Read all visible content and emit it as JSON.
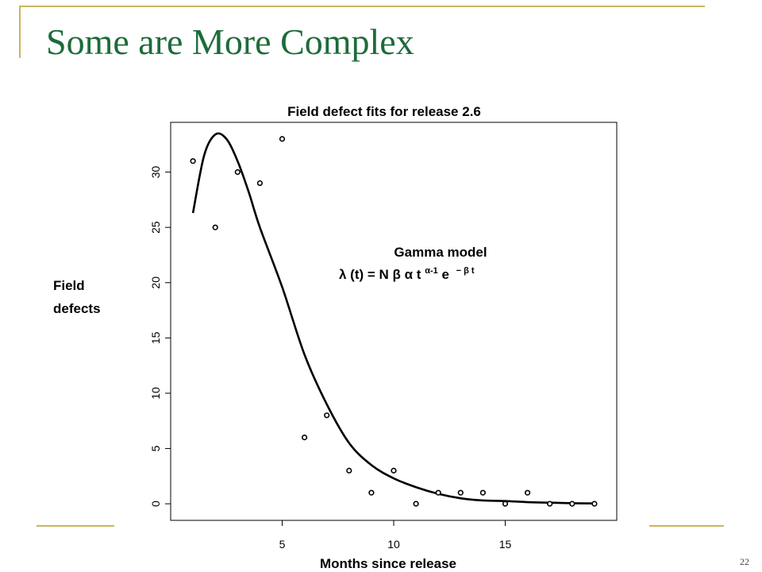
{
  "slide": {
    "title": "Some are More Complex",
    "page_number": "22",
    "accent_color": "#c9b660",
    "title_color": "#1d6b3a"
  },
  "chart_data": {
    "type": "scatter",
    "title": "Field defect fits for release 2.6",
    "xlabel": "Months since release",
    "ylabel": "Field defects",
    "xlim": [
      0,
      20
    ],
    "ylim": [
      -1.5,
      34.5
    ],
    "xticks": [
      5,
      10,
      15
    ],
    "yticks": [
      0,
      5,
      10,
      15,
      20,
      25,
      30
    ],
    "grid": false,
    "annotation": {
      "title": "Gamma model",
      "formula_base": "λ (t) = N  β α t ",
      "formula_sup1": "α-1",
      "formula_mid": " e ",
      "formula_sup2": "− β t"
    },
    "series": [
      {
        "kind": "points",
        "x": [
          1,
          2,
          3,
          4,
          5,
          6,
          7,
          8,
          9,
          10,
          11,
          12,
          13,
          14,
          15,
          16,
          17,
          18,
          19
        ],
        "y": [
          31,
          25,
          30,
          29,
          33,
          6,
          8,
          3,
          1,
          3,
          0,
          1,
          1,
          1,
          0,
          1,
          0,
          0,
          0
        ]
      },
      {
        "kind": "fit-curve",
        "x": [
          1,
          1.5,
          2,
          2.5,
          3,
          3.5,
          4,
          5,
          6,
          7,
          8,
          9,
          10,
          11,
          12,
          13,
          14,
          15,
          16,
          17,
          18,
          19
        ],
        "y": [
          26.3,
          31.5,
          33.4,
          33,
          31,
          28.2,
          25,
          19.6,
          13.5,
          9,
          5.5,
          3.5,
          2.3,
          1.5,
          0.9,
          0.5,
          0.3,
          0.25,
          0.15,
          0.1,
          0.05,
          0.03
        ]
      }
    ]
  }
}
